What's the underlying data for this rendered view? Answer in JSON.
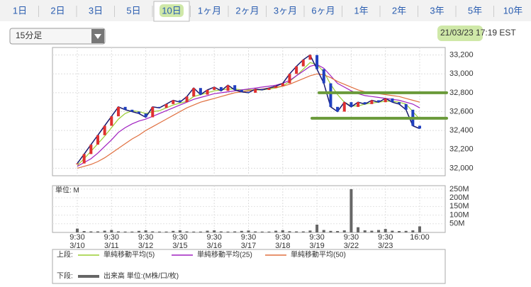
{
  "tabs": [
    "1日",
    "2日",
    "3日",
    "5日",
    "10日",
    "1ヶ月",
    "2ヶ月",
    "3ヶ月",
    "6ヶ月",
    "1年",
    "2年",
    "3年",
    "5年",
    "10年"
  ],
  "selected_tab": 4,
  "interval": "15分足",
  "timestamp": "21/03/23 17:19 EST",
  "chart_data": [
    {
      "type": "line",
      "categories": [
        "9:30 3/10",
        null,
        null,
        null,
        null,
        "9:30 3/11",
        null,
        null,
        null,
        null,
        "9:30 3/12",
        null,
        null,
        null,
        null,
        "9:30 3/15",
        null,
        null,
        null,
        null,
        "9:30 3/16",
        null,
        null,
        null,
        null,
        "9:30 3/17",
        null,
        null,
        null,
        null,
        "9:30 3/18",
        null,
        null,
        null,
        null,
        "9:30 3/19",
        null,
        null,
        null,
        null,
        "9:30 3/22",
        null,
        null,
        null,
        null,
        "9:30 3/23",
        null,
        null,
        null,
        null,
        "16:00"
      ],
      "values": [
        32050,
        32150,
        32250,
        32350,
        32450,
        32550,
        32650,
        32620,
        32600,
        32580,
        32540,
        32650,
        32640,
        32680,
        32720,
        32700,
        32760,
        32850,
        32780,
        32830,
        32860,
        32820,
        32880,
        32830,
        32810,
        32800,
        32840,
        32830,
        32850,
        32870,
        32900,
        33000,
        33080,
        33150,
        33200,
        33050,
        32900,
        32650,
        32600,
        32700,
        32650,
        32700,
        32680,
        32720,
        32700,
        32740,
        32700,
        32680,
        32620,
        32450,
        32420
      ],
      "color": "#1a1a6e",
      "legend_label": "上段:",
      "series": [
        {
          "name": "単純移動平均(5)",
          "color": "#9acd32",
          "values": [
            32030,
            32100,
            32180,
            32260,
            32340,
            32430,
            32520,
            32580,
            32610,
            32600,
            32580,
            32600,
            32610,
            32640,
            32670,
            32690,
            32710,
            32760,
            32780,
            32800,
            32820,
            32830,
            32840,
            32840,
            32830,
            32830,
            32830,
            32830,
            32840,
            32850,
            32870,
            32920,
            32980,
            33050,
            33120,
            33100,
            33020,
            32890,
            32780,
            32700,
            32660,
            32660,
            32680,
            32690,
            32700,
            32710,
            32710,
            32700,
            32680,
            32600,
            32520
          ]
        },
        {
          "name": "単純移動平均(25)",
          "color": "#a020c0",
          "values": [
            32020,
            32060,
            32100,
            32160,
            32230,
            32300,
            32380,
            32430,
            32470,
            32500,
            32520,
            32550,
            32580,
            32610,
            32640,
            32670,
            32700,
            32730,
            32750,
            32770,
            32790,
            32800,
            32810,
            32820,
            32830,
            32840,
            32850,
            32860,
            32870,
            32880,
            32900,
            32930,
            32980,
            33030,
            33080,
            33100,
            33060,
            32980,
            32900,
            32860,
            32820,
            32790,
            32770,
            32760,
            32750,
            32740,
            32730,
            32720,
            32700,
            32680,
            32640
          ]
        },
        {
          "name": "単純移動平均(50)",
          "color": "#e07040",
          "values": [
            32000,
            32020,
            32040,
            32070,
            32110,
            32160,
            32210,
            32260,
            32310,
            32350,
            32400,
            32440,
            32480,
            32520,
            32560,
            32600,
            32640,
            32670,
            32700,
            32720,
            32740,
            32760,
            32780,
            32800,
            32810,
            32820,
            32830,
            32840,
            32850,
            32860,
            32870,
            32890,
            32920,
            32950,
            32980,
            33000,
            32990,
            32960,
            32920,
            32890,
            32860,
            32830,
            32810,
            32800,
            32790,
            32780,
            32770,
            32760,
            32740,
            32720,
            32700
          ]
        }
      ],
      "levels": [
        32800,
        32530
      ],
      "level_color": "#6a9a3a",
      "ylim": [
        31920,
        33280
      ],
      "yticks": [
        {
          "value": 32000,
          "label": "32,000"
        },
        {
          "value": 32200,
          "label": "32,200"
        },
        {
          "value": 32400,
          "label": "32,400"
        },
        {
          "value": 32600,
          "label": "32,600"
        },
        {
          "value": 32800,
          "label": "32,800"
        },
        {
          "value": 33000,
          "label": "33,000"
        },
        {
          "value": 33200,
          "label": "33,200"
        }
      ],
      "grid": true
    },
    {
      "type": "bar",
      "unit_label": "単位: M",
      "legend_label": "下段:",
      "series": [
        {
          "name": "出来高 単位:(M株/口/枚)",
          "color": "#666666",
          "values": [
            22,
            8,
            6,
            6,
            10,
            14,
            6,
            5,
            5,
            9,
            12,
            6,
            5,
            5,
            9,
            12,
            6,
            5,
            5,
            10,
            12,
            6,
            5,
            6,
            9,
            11,
            6,
            5,
            5,
            10,
            13,
            7,
            6,
            6,
            11,
            45,
            14,
            9,
            8,
            12,
            250,
            30,
            12,
            10,
            14,
            20,
            10,
            8,
            9,
            12,
            35
          ]
        }
      ],
      "ylim": [
        0,
        270
      ],
      "yticks": [
        {
          "value": 50,
          "label": "50M"
        },
        {
          "value": 100,
          "label": "100M"
        },
        {
          "value": 150,
          "label": "150M"
        },
        {
          "value": 200,
          "label": "200M"
        },
        {
          "value": 250,
          "label": "250M"
        }
      ],
      "grid": true
    }
  ]
}
